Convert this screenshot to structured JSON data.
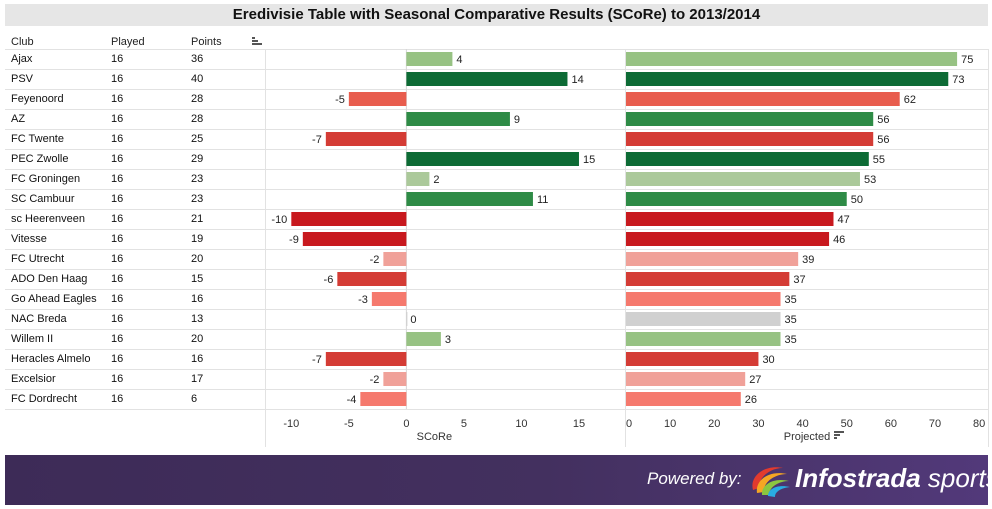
{
  "header": {
    "title": "Eredivisie Table with Seasonal Comparative Results (SCoRe) to 2013/2014"
  },
  "columns": {
    "club": "Club",
    "played": "Played",
    "points": "Points"
  },
  "footer": {
    "powered_by": "Powered by:",
    "brand_bold": "Infostrada",
    "brand_light": "sports"
  },
  "chart_data": [
    {
      "type": "bar",
      "orientation": "horizontal",
      "xlabel": "SCoRe",
      "xlim": [
        -12.2,
        19
      ],
      "xticks": [
        -10,
        -5,
        0,
        5,
        10,
        15
      ],
      "categories": [
        "Ajax",
        "PSV",
        "Feyenoord",
        "AZ",
        "FC Twente",
        "PEC Zwolle",
        "FC Groningen",
        "SC Cambuur",
        "sc Heerenveen",
        "Vitesse",
        "FC Utrecht",
        "ADO Den Haag",
        "Go Ahead Eagles",
        "NAC Breda",
        "Willem II",
        "Heracles Almelo",
        "Excelsior",
        "FC Dordrecht"
      ],
      "values": [
        4,
        14,
        -5,
        9,
        -7,
        15,
        2,
        11,
        -10,
        -9,
        -2,
        -6,
        -3,
        0,
        3,
        -7,
        -2,
        -4
      ],
      "colors": [
        "#97c283",
        "#0d6b35",
        "#e85d4e",
        "#2e8b46",
        "#d43c35",
        "#0d6b35",
        "#abc99a",
        "#2e8b46",
        "#c8191e",
        "#c8191e",
        "#f0a199",
        "#d43c35",
        "#f5796d",
        "#d0d0d0",
        "#97c283",
        "#d43c35",
        "#f0a199",
        "#f5796d"
      ]
    },
    {
      "type": "bar",
      "orientation": "horizontal",
      "xlabel": "Projected",
      "xlim": [
        0,
        82
      ],
      "xticks": [
        0,
        10,
        20,
        30,
        40,
        50,
        60,
        70,
        80
      ],
      "categories": [
        "Ajax",
        "PSV",
        "Feyenoord",
        "AZ",
        "FC Twente",
        "PEC Zwolle",
        "FC Groningen",
        "SC Cambuur",
        "sc Heerenveen",
        "Vitesse",
        "FC Utrecht",
        "ADO Den Haag",
        "Go Ahead Eagles",
        "NAC Breda",
        "Willem II",
        "Heracles Almelo",
        "Excelsior",
        "FC Dordrecht"
      ],
      "values": [
        75,
        73,
        62,
        56,
        56,
        55,
        53,
        50,
        47,
        46,
        39,
        37,
        35,
        35,
        35,
        30,
        27,
        26
      ],
      "colors": [
        "#97c283",
        "#0d6b35",
        "#e85d4e",
        "#2e8b46",
        "#d43c35",
        "#0d6b35",
        "#abc99a",
        "#2e8b46",
        "#c8191e",
        "#c8191e",
        "#f0a199",
        "#d43c35",
        "#f5796d",
        "#d0d0d0",
        "#97c283",
        "#d43c35",
        "#f0a199",
        "#f5796d"
      ]
    }
  ],
  "table": [
    {
      "club": "Ajax",
      "played": "16",
      "points": "36"
    },
    {
      "club": "PSV",
      "played": "16",
      "points": "40"
    },
    {
      "club": "Feyenoord",
      "played": "16",
      "points": "28"
    },
    {
      "club": "AZ",
      "played": "16",
      "points": "28"
    },
    {
      "club": "FC Twente",
      "played": "16",
      "points": "25"
    },
    {
      "club": "PEC Zwolle",
      "played": "16",
      "points": "29"
    },
    {
      "club": "FC Groningen",
      "played": "16",
      "points": "23"
    },
    {
      "club": "SC Cambuur",
      "played": "16",
      "points": "23"
    },
    {
      "club": "sc Heerenveen",
      "played": "16",
      "points": "21"
    },
    {
      "club": "Vitesse",
      "played": "16",
      "points": "19"
    },
    {
      "club": "FC Utrecht",
      "played": "16",
      "points": "20"
    },
    {
      "club": "ADO Den Haag",
      "played": "16",
      "points": "15"
    },
    {
      "club": "Go Ahead Eagles",
      "played": "16",
      "points": "16"
    },
    {
      "club": "NAC Breda",
      "played": "16",
      "points": "13"
    },
    {
      "club": "Willem II",
      "played": "16",
      "points": "20"
    },
    {
      "club": "Heracles Almelo",
      "played": "16",
      "points": "16"
    },
    {
      "club": "Excelsior",
      "played": "16",
      "points": "17"
    },
    {
      "club": "FC Dordrecht",
      "played": "16",
      "points": "6"
    }
  ]
}
